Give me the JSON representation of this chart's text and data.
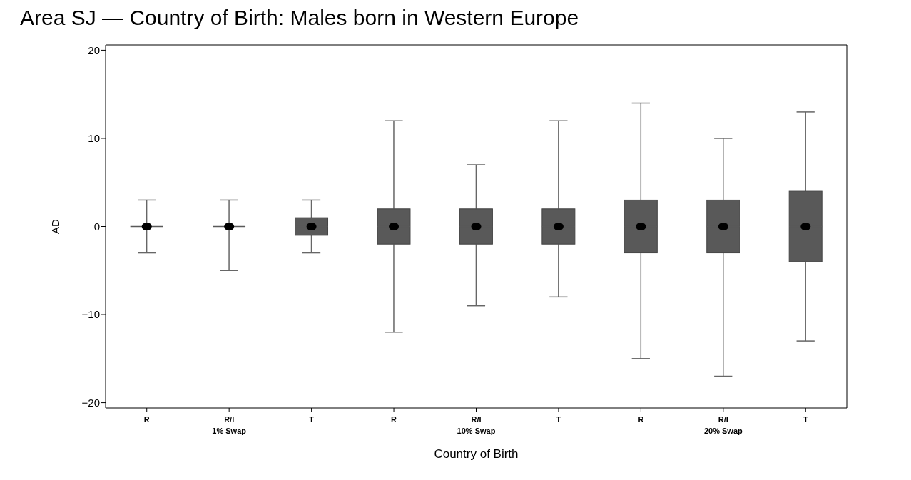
{
  "chart_data": {
    "type": "box",
    "title": "Area SJ — Country of Birth: Males born in Western Europe",
    "xlabel": "Country of Birth",
    "ylabel": "AD",
    "categories": [
      "R",
      "R/I",
      "T",
      "R",
      "R/I",
      "T",
      "R",
      "R/I",
      "T"
    ],
    "boxes": [
      {
        "low": -3,
        "q1": 0,
        "median": 0,
        "q3": 0,
        "high": 3,
        "mean": 0
      },
      {
        "low": -5,
        "q1": 0,
        "median": 0,
        "q3": 0,
        "high": 3,
        "mean": 0
      },
      {
        "low": -3,
        "q1": -1,
        "median": 0,
        "q3": 1,
        "high": 3,
        "mean": 0
      },
      {
        "low": -12,
        "q1": -2,
        "median": 0,
        "q3": 2,
        "high": 12,
        "mean": 0
      },
      {
        "low": -9,
        "q1": -2,
        "median": 0,
        "q3": 2,
        "high": 7,
        "mean": 0
      },
      {
        "low": -8,
        "q1": -2,
        "median": 0,
        "q3": 2,
        "high": 12,
        "mean": 0
      },
      {
        "low": -15,
        "q1": -3,
        "median": 0,
        "q3": 3,
        "high": 14,
        "mean": 0
      },
      {
        "low": -17,
        "q1": -3,
        "median": 0,
        "q3": 3,
        "high": 10,
        "mean": 0
      },
      {
        "low": -13,
        "q1": -4,
        "median": 0,
        "q3": 4,
        "high": 13,
        "mean": 0
      }
    ],
    "color": "#595959",
    "ylim": [
      -20.6,
      20.6
    ],
    "yticks": [
      {
        "value": -20,
        "label": "−20"
      },
      {
        "value": -10,
        "label": "−10"
      },
      0,
      10,
      20
    ],
    "annotations": [
      "1% Swap",
      "10% Swap",
      "20% Swap"
    ],
    "legend": false
  }
}
